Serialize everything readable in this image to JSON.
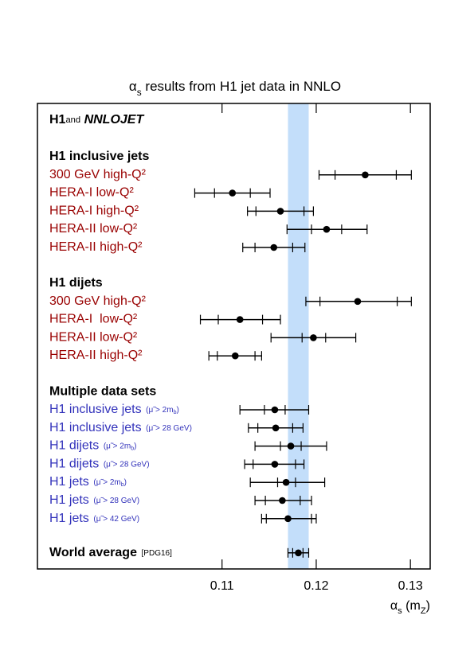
{
  "chart_data": {
    "type": "forest",
    "title": [
      {
        "text": "α"
      },
      {
        "text": "s",
        "sub": true
      },
      {
        "text": " results from H1 jet data in NNLO"
      }
    ],
    "header": [
      {
        "text": "H1",
        "style": "bold"
      },
      {
        "text": "and",
        "style": "small"
      },
      {
        "text": " NNLOJET",
        "style": "bolditalic"
      }
    ],
    "xlabel": [
      {
        "text": "α"
      },
      {
        "text": "s",
        "sub": true
      },
      {
        "text": " (m"
      },
      {
        "text": "Z",
        "sub": true
      },
      {
        "text": ")"
      }
    ],
    "xlim": [
      0.0904,
      0.1321
    ],
    "xticks": [
      0.11,
      0.12,
      0.13
    ],
    "marker_color": "#000000",
    "band_color": "#c3defa",
    "groups": [
      {
        "name": "H1 inclusive jets",
        "color": "#990000",
        "rows": [
          {
            "label": "300 GeV high-Q²",
            "value": 0.1252,
            "total": [
              0.1203,
              0.1301
            ],
            "exp": [
              0.122,
              0.1285
            ]
          },
          {
            "label": "HERA-I low-Q²",
            "value": 0.1111,
            "total": [
              0.1071,
              0.1151
            ],
            "exp": [
              0.1092,
              0.113
            ]
          },
          {
            "label": "HERA-I high-Q²",
            "value": 0.1162,
            "total": [
              0.1127,
              0.1197
            ],
            "exp": [
              0.1136,
              0.1187
            ]
          },
          {
            "label": "HERA-II low-Q²",
            "value": 0.1211,
            "total": [
              0.1169,
              0.1254
            ],
            "exp": [
              0.1195,
              0.1227
            ]
          },
          {
            "label": "HERA-II high-Q²",
            "value": 0.1155,
            "total": [
              0.1122,
              0.1188
            ],
            "exp": [
              0.1135,
              0.1175
            ]
          }
        ]
      },
      {
        "name": "H1 dijets",
        "color": "#990000",
        "rows": [
          {
            "label": "300 GeV high-Q²",
            "value": 0.1244,
            "total": [
              0.1189,
              0.1301
            ],
            "exp": [
              0.1204,
              0.1286
            ]
          },
          {
            "label": "HERA-I  low-Q²",
            "value": 0.1119,
            "total": [
              0.1077,
              0.1162
            ],
            "exp": [
              0.1096,
              0.1143
            ]
          },
          {
            "label": "HERA-II low-Q²",
            "value": 0.1197,
            "total": [
              0.1152,
              0.1242
            ],
            "exp": [
              0.1185,
              0.121
            ]
          },
          {
            "label": "HERA-II high-Q²",
            "value": 0.1114,
            "total": [
              0.1086,
              0.1142
            ],
            "exp": [
              0.1095,
              0.1135
            ]
          }
        ]
      },
      {
        "name": "Multiple data sets",
        "color": "#3333bb",
        "rows": [
          {
            "label": "H1 inclusive jets",
            "note": [
              {
                "text": "(μ̃ > 2m"
              },
              {
                "text": "b",
                "sub": true
              },
              {
                "text": ")"
              }
            ],
            "value": 0.1156,
            "total": [
              0.1119,
              0.1192
            ],
            "exp": [
              0.1145,
              0.1167
            ]
          },
          {
            "label": "H1 inclusive jets",
            "note": [
              {
                "text": "(μ̃ > 28 GeV)"
              }
            ],
            "value": 0.1157,
            "total": [
              0.1128,
              0.1186
            ],
            "exp": [
              0.1138,
              0.1175
            ]
          },
          {
            "label": "H1 dijets",
            "note": [
              {
                "text": "(μ̃ > 2m"
              },
              {
                "text": "b",
                "sub": true
              },
              {
                "text": ")"
              }
            ],
            "value": 0.1173,
            "total": [
              0.1135,
              0.1211
            ],
            "exp": [
              0.1162,
              0.1184
            ]
          },
          {
            "label": "H1 dijets",
            "note": [
              {
                "text": "(μ̃ > 28 GeV)"
              }
            ],
            "value": 0.1156,
            "total": [
              0.1124,
              0.1187
            ],
            "exp": [
              0.1133,
              0.1178
            ]
          },
          {
            "label": "H1 jets",
            "note": [
              {
                "text": "(μ̃ > 2m"
              },
              {
                "text": "b",
                "sub": true
              },
              {
                "text": ")"
              }
            ],
            "value": 0.1168,
            "total": [
              0.113,
              0.1209
            ],
            "exp": [
              0.1159,
              0.1178
            ]
          },
          {
            "label": "H1 jets",
            "note": [
              {
                "text": "(μ̃ > 28 GeV)"
              }
            ],
            "value": 0.1164,
            "total": [
              0.1135,
              0.1195
            ],
            "exp": [
              0.1146,
              0.1183
            ]
          },
          {
            "label": "H1 jets",
            "note": [
              {
                "text": "(μ̃ > 42 GeV)"
              }
            ],
            "value": 0.117,
            "total": [
              0.1142,
              0.12
            ],
            "exp": [
              0.1147,
              0.1195
            ]
          }
        ]
      }
    ],
    "reference": {
      "name": "World average",
      "note": [
        {
          "text": "[PDG16]"
        }
      ],
      "value": 0.1181,
      "total": [
        0.117,
        0.1192
      ],
      "exp": [
        0.1175,
        0.1186
      ]
    }
  }
}
